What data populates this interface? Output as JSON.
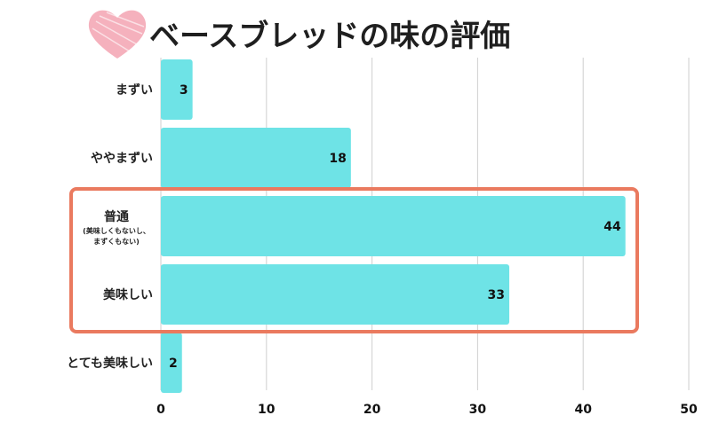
{
  "title": "ベースブレッドの味の評価",
  "colors": {
    "bar": "#6ee3e6",
    "grid": "#cfcfcf",
    "highlight": "#ea7a5f",
    "heart": "#f4a8b6"
  },
  "icons": {
    "title_decoration": "heart-icon"
  },
  "chart_data": {
    "type": "bar",
    "orientation": "horizontal",
    "categories": [
      "まずい",
      "ややまずい",
      "普通",
      "美味しい",
      "とても美味しい"
    ],
    "category_sublabels": [
      "",
      "",
      "(美味しくもないし、\nまずくもない)",
      "",
      ""
    ],
    "values": [
      3,
      18,
      44,
      33,
      2
    ],
    "xlim": [
      0,
      50
    ],
    "xticks": [
      0,
      10,
      20,
      30,
      40,
      50
    ],
    "grid": true,
    "highlight_categories": [
      "普通",
      "美味しい"
    ]
  }
}
